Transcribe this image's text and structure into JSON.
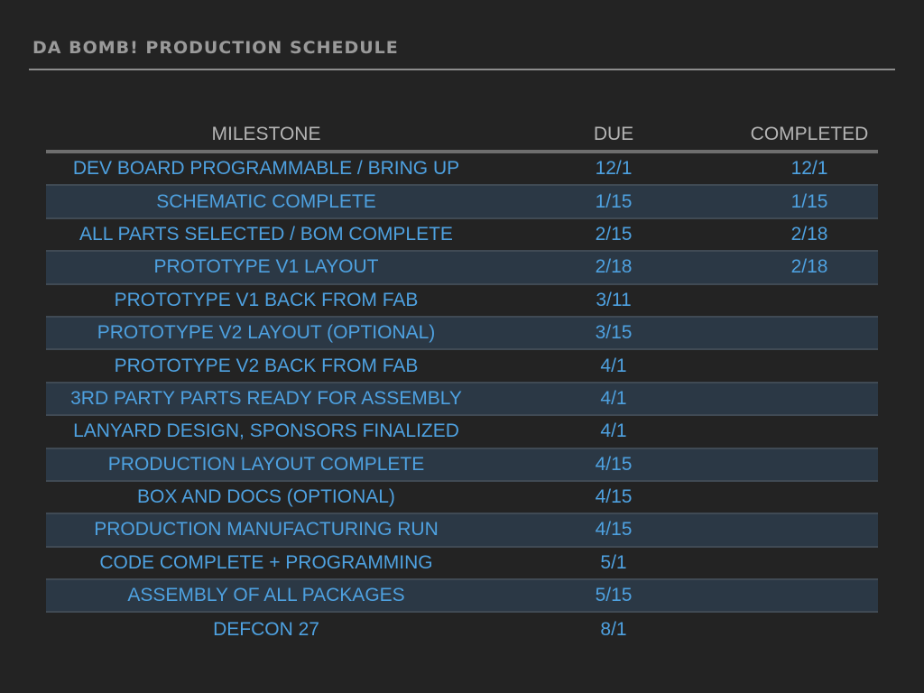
{
  "title": "DA BOMB! PRODUCTION SCHEDULE",
  "colors": {
    "background": "#232323",
    "text": "#4ea1e0",
    "header_text": "#b4b4b4",
    "title_text": "#9a9a9a",
    "row_shade": "#2b3845"
  },
  "table": {
    "headers": {
      "milestone": "MILESTONE",
      "due": "DUE",
      "completed": "COMPLETED"
    },
    "rows": [
      {
        "milestone": "DEV BOARD PROGRAMMABLE / BRING UP",
        "due": "12/1",
        "completed": "12/1"
      },
      {
        "milestone": "SCHEMATIC COMPLETE",
        "due": "1/15",
        "completed": "1/15"
      },
      {
        "milestone": "ALL PARTS SELECTED / BOM COMPLETE",
        "due": "2/15",
        "completed": "2/18"
      },
      {
        "milestone": "PROTOTYPE V1 LAYOUT",
        "due": "2/18",
        "completed": "2/18"
      },
      {
        "milestone": "PROTOTYPE V1 BACK FROM FAB",
        "due": "3/11",
        "completed": ""
      },
      {
        "milestone": "PROTOTYPE V2 LAYOUT (OPTIONAL)",
        "due": "3/15",
        "completed": ""
      },
      {
        "milestone": "PROTOTYPE V2 BACK FROM FAB",
        "due": "4/1",
        "completed": ""
      },
      {
        "milestone": "3RD PARTY PARTS READY FOR ASSEMBLY",
        "due": "4/1",
        "completed": ""
      },
      {
        "milestone": "LANYARD DESIGN, SPONSORS FINALIZED",
        "due": "4/1",
        "completed": ""
      },
      {
        "milestone": "PRODUCTION LAYOUT COMPLETE",
        "due": "4/15",
        "completed": ""
      },
      {
        "milestone": "BOX AND DOCS (OPTIONAL)",
        "due": "4/15",
        "completed": ""
      },
      {
        "milestone": "PRODUCTION MANUFACTURING RUN",
        "due": "4/15",
        "completed": ""
      },
      {
        "milestone": "CODE COMPLETE + PROGRAMMING",
        "due": "5/1",
        "completed": ""
      },
      {
        "milestone": "ASSEMBLY OF ALL PACKAGES",
        "due": "5/15",
        "completed": ""
      },
      {
        "milestone": "DEFCON 27",
        "due": "8/1",
        "completed": ""
      }
    ]
  }
}
